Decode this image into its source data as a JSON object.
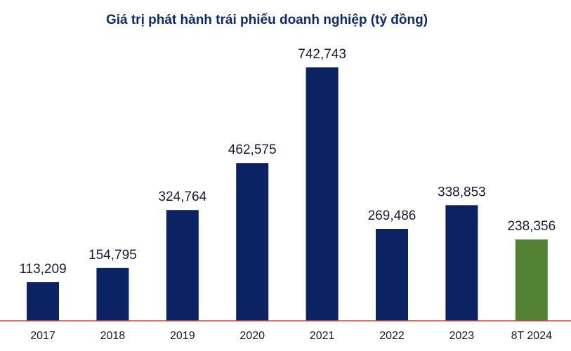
{
  "chart_data": {
    "type": "bar",
    "title": "Giá trị phát hành trái phiếu doanh nghiệp (tỷ đồng)",
    "xlabel": "",
    "ylabel": "",
    "categories": [
      "2017",
      "2018",
      "2019",
      "2020",
      "2021",
      "2022",
      "2023",
      "8T 2024"
    ],
    "values": [
      113209,
      154795,
      324764,
      462575,
      742743,
      269486,
      338853,
      238356
    ],
    "value_labels": [
      "113,209",
      "154,795",
      "324,764",
      "462,575",
      "742,743",
      "269,486",
      "338,853",
      "238,356"
    ],
    "ylim": [
      0,
      800000
    ],
    "grid": false,
    "legend": "none",
    "colors": {
      "default_bar": "#0b2263",
      "highlight_bar": "#538234",
      "baseline": "#d7403c",
      "title": "#0d2b6b"
    },
    "highlight_category": "8T 2024"
  }
}
